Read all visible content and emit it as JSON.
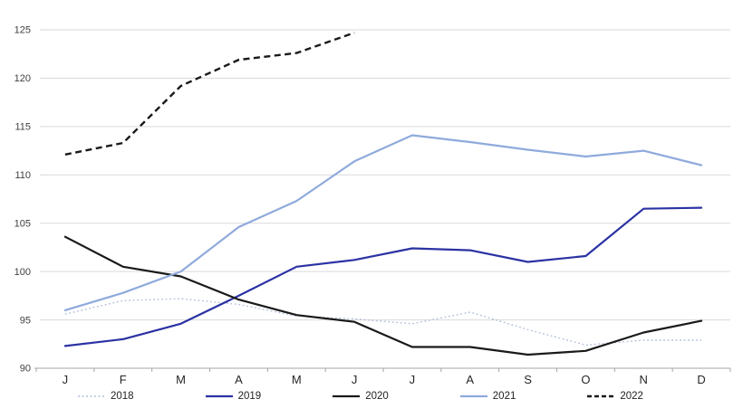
{
  "chart_data": {
    "type": "line",
    "title": "",
    "xlabel": "",
    "ylabel": "",
    "categories": [
      "J",
      "F",
      "M",
      "A",
      "M",
      "J",
      "J",
      "A",
      "S",
      "O",
      "N",
      "D"
    ],
    "y_ticks": [
      90,
      95,
      100,
      105,
      110,
      115,
      120,
      125
    ],
    "ylim": [
      90,
      125
    ],
    "grid": true,
    "legend_position": "bottom",
    "colors": {
      "gridline": "#d9d9d9",
      "axis": "#a6a6a6",
      "tick_label": "#404040",
      "month_label": "#262626"
    },
    "series": [
      {
        "name": "2018",
        "style": "dotted",
        "color": "#b3bfdb",
        "values": [
          95.6,
          97.0,
          97.2,
          96.6,
          95.4,
          95.1,
          94.6,
          95.8,
          94.0,
          92.4,
          92.9,
          92.9
        ]
      },
      {
        "name": "2019",
        "style": "solid",
        "color": "#2b32a3",
        "values": [
          92.3,
          93.0,
          94.6,
          97.5,
          100.5,
          101.2,
          102.4,
          102.2,
          101.0,
          101.6,
          106.5,
          106.6
        ]
      },
      {
        "name": "2020",
        "style": "solid",
        "color": "#1a1a1a",
        "values": [
          103.6,
          100.5,
          99.5,
          97.1,
          95.5,
          94.8,
          92.2,
          92.2,
          91.4,
          91.8,
          93.7,
          94.9
        ]
      },
      {
        "name": "2021",
        "style": "solid",
        "color": "#8faadc",
        "values": [
          96.0,
          97.8,
          100.0,
          104.6,
          107.3,
          111.4,
          114.1,
          113.4,
          112.6,
          111.9,
          112.5,
          111.0
        ]
      },
      {
        "name": "2022",
        "style": "dashed",
        "color": "#1a1a1a",
        "values": [
          112.1,
          113.3,
          119.2,
          121.9,
          122.6,
          124.7
        ]
      }
    ]
  }
}
